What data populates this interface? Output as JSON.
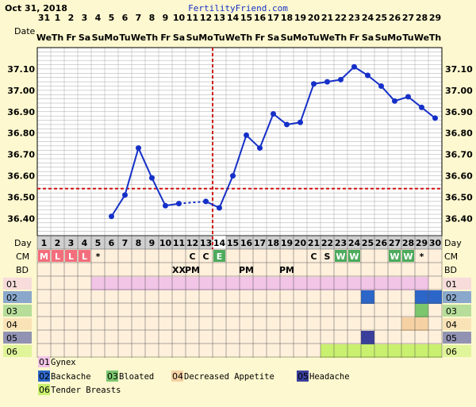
{
  "header": {
    "date": "Oct 31, 2018",
    "site": "FertilityFriend.com",
    "date_label": "Date",
    "day_label": "Day",
    "cm_label": "CM",
    "bd_label": "BD"
  },
  "colors": {
    "line": "#1530c8",
    "coverline": "#d21414",
    "grid": "#a7a7a7",
    "pink": "#f2c4e6",
    "blue": "#2c66c8",
    "green": "#7cc66e",
    "peach": "#f6d1a3",
    "navy": "#3a3f9c",
    "lime": "#c9f06e",
    "cm_green": "#4cab5c",
    "cm_pink": "#f36e7c",
    "cell": "#fff0dc",
    "header_gray": "#cfcfcf"
  },
  "chart_data": {
    "type": "line",
    "title": "",
    "xlabel": "Day",
    "ylabel": "",
    "days": [
      1,
      2,
      3,
      4,
      5,
      6,
      7,
      8,
      9,
      10,
      11,
      12,
      13,
      14,
      15,
      16,
      17,
      18,
      19,
      20,
      21,
      22,
      23,
      24,
      25,
      26,
      27,
      28,
      29,
      30
    ],
    "dates": [
      "31",
      "1",
      "2",
      "3",
      "4",
      "5",
      "6",
      "7",
      "8",
      "9",
      "10",
      "11",
      "12",
      "13",
      "14",
      "15",
      "16",
      "17",
      "18",
      "19",
      "20",
      "21",
      "22",
      "23",
      "24",
      "25",
      "26",
      "27",
      "28",
      "29"
    ],
    "weekdays": [
      "We",
      "Th",
      "Fr",
      "Sa",
      "Su",
      "Mo",
      "Tu",
      "We",
      "Th",
      "Fr",
      "Sa",
      "Su",
      "Mo",
      "Tu",
      "We",
      "Th",
      "Fr",
      "Sa",
      "Su",
      "Mo",
      "Tu",
      "We",
      "Th",
      "Fr",
      "Sa",
      "Su",
      "Mo",
      "Tu",
      "We",
      "Th"
    ],
    "temps": [
      null,
      null,
      null,
      null,
      null,
      36.41,
      36.51,
      36.73,
      36.59,
      36.46,
      36.47,
      null,
      36.48,
      36.45,
      36.6,
      36.79,
      36.73,
      36.89,
      36.84,
      36.85,
      37.03,
      37.04,
      37.05,
      37.11,
      37.07,
      37.02,
      36.95,
      36.97,
      36.92,
      36.87
    ],
    "dashed_segments": [
      [
        11,
        13
      ]
    ],
    "ylim": [
      36.32,
      37.2
    ],
    "yticks": [
      "36.40",
      "36.50",
      "36.60",
      "36.70",
      "36.80",
      "36.90",
      "37.00",
      "37.10"
    ],
    "coverline": 36.54,
    "ovulation_day": 14,
    "cm": [
      "M",
      "L",
      "L",
      "L",
      "*",
      "",
      "",
      "",
      "",
      "",
      "",
      "C",
      "C",
      "E",
      "",
      "",
      "",
      "",
      "",
      "",
      "C",
      "S",
      "W",
      "W",
      "",
      "",
      "W",
      "W",
      "*",
      ""
    ],
    "bd": [
      "",
      "",
      "",
      "",
      "",
      "",
      "",
      "",
      "",
      "",
      "XX",
      "PM",
      "",
      "",
      "",
      "PM",
      "",
      "",
      "PM",
      "",
      "",
      "",
      "",
      "",
      "",
      "",
      "",
      "",
      "",
      ""
    ],
    "symptoms": [
      {
        "code": "01",
        "name": "Gynex",
        "color": "#f2c4e6",
        "days": [
          5,
          6,
          7,
          8,
          9,
          10,
          11,
          12,
          13,
          14,
          15,
          16,
          17,
          18,
          19,
          20,
          21,
          22,
          23,
          24,
          25,
          26,
          27,
          28,
          29
        ]
      },
      {
        "code": "02",
        "name": "Backache",
        "color": "#2c66c8",
        "days": [
          25,
          29,
          30
        ]
      },
      {
        "code": "03",
        "name": "Bloated",
        "color": "#7cc66e",
        "days": [
          29
        ]
      },
      {
        "code": "04",
        "name": "Decreased Appetite",
        "color": "#f6d1a3",
        "days": [
          28,
          29
        ]
      },
      {
        "code": "05",
        "name": "Headache",
        "color": "#3a3f9c",
        "days": [
          25
        ]
      },
      {
        "code": "06",
        "name": "Tender Breasts",
        "color": "#c9f06e",
        "days": [
          22,
          23,
          24,
          25,
          26,
          27,
          28,
          29,
          30
        ]
      }
    ]
  }
}
